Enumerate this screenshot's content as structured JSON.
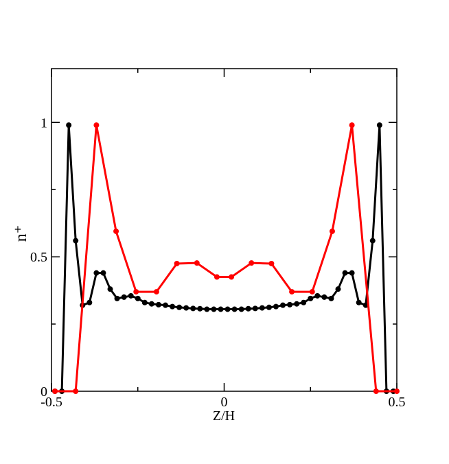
{
  "chart_data": {
    "type": "line",
    "xlabel": "Z/H",
    "ylabel": "n⁺",
    "xlim": [
      -0.5,
      0.5
    ],
    "ylim": [
      0,
      1.2
    ],
    "xticks": [
      -0.5,
      0,
      0.5
    ],
    "yticks": [
      0,
      0.5,
      1
    ],
    "minor_xticks": [
      -0.25,
      0.25
    ],
    "minor_yticks": [
      0.25,
      0.75
    ],
    "series": [
      {
        "color": "#000000",
        "x": [
          -0.49,
          -0.47,
          -0.45,
          -0.43,
          -0.41,
          -0.39,
          -0.37,
          -0.35,
          -0.33,
          -0.31,
          -0.29,
          -0.27,
          -0.25,
          -0.23,
          -0.21,
          -0.19,
          -0.17,
          -0.15,
          -0.13,
          -0.11,
          -0.09,
          -0.07,
          -0.05,
          -0.03,
          -0.01,
          0.01,
          0.03,
          0.05,
          0.07,
          0.09,
          0.11,
          0.13,
          0.15,
          0.17,
          0.19,
          0.21,
          0.23,
          0.25,
          0.27,
          0.29,
          0.31,
          0.33,
          0.35,
          0.37,
          0.39,
          0.41,
          0.43,
          0.45,
          0.47,
          0.49
        ],
        "values": [
          0,
          0,
          0.99,
          0.56,
          0.32,
          0.33,
          0.44,
          0.44,
          0.38,
          0.345,
          0.35,
          0.355,
          0.345,
          0.33,
          0.325,
          0.322,
          0.32,
          0.315,
          0.312,
          0.31,
          0.308,
          0.307,
          0.305,
          0.305,
          0.305,
          0.305,
          0.305,
          0.305,
          0.307,
          0.308,
          0.31,
          0.312,
          0.315,
          0.32,
          0.322,
          0.325,
          0.33,
          0.345,
          0.355,
          0.35,
          0.345,
          0.38,
          0.44,
          0.44,
          0.33,
          0.32,
          0.56,
          0.99,
          0,
          0
        ]
      },
      {
        "color": "#ff0000",
        "x": [
          -0.49,
          -0.43,
          -0.37,
          -0.313,
          -0.255,
          -0.196,
          -0.137,
          -0.079,
          -0.021,
          0.021,
          0.079,
          0.137,
          0.196,
          0.255,
          0.313,
          0.37,
          0.44,
          0.5
        ],
        "values": [
          0,
          0,
          0.99,
          0.595,
          0.37,
          0.37,
          0.475,
          0.477,
          0.425,
          0.425,
          0.477,
          0.475,
          0.37,
          0.37,
          0.595,
          0.99,
          0,
          0
        ]
      }
    ]
  }
}
